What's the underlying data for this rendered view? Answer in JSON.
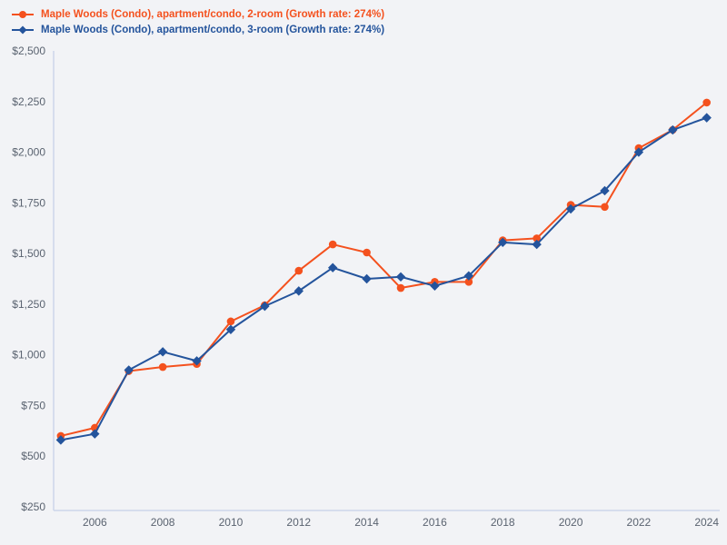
{
  "colors": {
    "background": "#f2f3f6",
    "axis": "#ccd6ea",
    "tick_text": "#5a6370",
    "series_2room": "#f4511e",
    "series_3room": "#24549c"
  },
  "chart_data": {
    "type": "line",
    "title": "",
    "xlabel": "",
    "ylabel": "",
    "grid": false,
    "legend_position": "top-left",
    "x": [
      2005,
      2006,
      2007,
      2008,
      2009,
      2010,
      2011,
      2012,
      2013,
      2014,
      2015,
      2016,
      2017,
      2018,
      2019,
      2020,
      2021,
      2022,
      2023,
      2024
    ],
    "series": [
      {
        "name": "Maple Woods (Condo), apartment/condo, 2-room (Growth rate: 274%)",
        "growth_rate_label": "274%",
        "color": "#f4511e",
        "marker": "circle",
        "values": [
          600,
          640,
          920,
          940,
          955,
          1165,
          1245,
          1415,
          1545,
          1505,
          1330,
          1360,
          1360,
          1565,
          1575,
          1740,
          1730,
          2020,
          2110,
          2245
        ]
      },
      {
        "name": "Maple Woods (Condo), apartment/condo, 3-room (Growth rate: 274%)",
        "growth_rate_label": "274%",
        "color": "#24549c",
        "marker": "diamond",
        "values": [
          580,
          610,
          925,
          1015,
          970,
          1125,
          1240,
          1315,
          1430,
          1375,
          1385,
          1340,
          1390,
          1555,
          1545,
          1720,
          1810,
          2000,
          2110,
          2170
        ]
      }
    ],
    "ylim": [
      250,
      2500
    ],
    "xlim": [
      2005,
      2024
    ],
    "yticks": [
      {
        "value": 250,
        "label": "$250"
      },
      {
        "value": 500,
        "label": "$500"
      },
      {
        "value": 750,
        "label": "$750"
      },
      {
        "value": 1000,
        "label": "$1,000"
      },
      {
        "value": 1250,
        "label": "$1,250"
      },
      {
        "value": 1500,
        "label": "$1,500"
      },
      {
        "value": 1750,
        "label": "$1,750"
      },
      {
        "value": 2000,
        "label": "$2,000"
      },
      {
        "value": 2250,
        "label": "$2,250"
      },
      {
        "value": 2500,
        "label": "$2,500"
      }
    ],
    "xticks": [
      {
        "value": 2006,
        "label": "2006"
      },
      {
        "value": 2008,
        "label": "2008"
      },
      {
        "value": 2010,
        "label": "2010"
      },
      {
        "value": 2012,
        "label": "2012"
      },
      {
        "value": 2014,
        "label": "2014"
      },
      {
        "value": 2016,
        "label": "2016"
      },
      {
        "value": 2018,
        "label": "2018"
      },
      {
        "value": 2020,
        "label": "2020"
      },
      {
        "value": 2022,
        "label": "2022"
      },
      {
        "value": 2024,
        "label": "2024"
      }
    ]
  }
}
